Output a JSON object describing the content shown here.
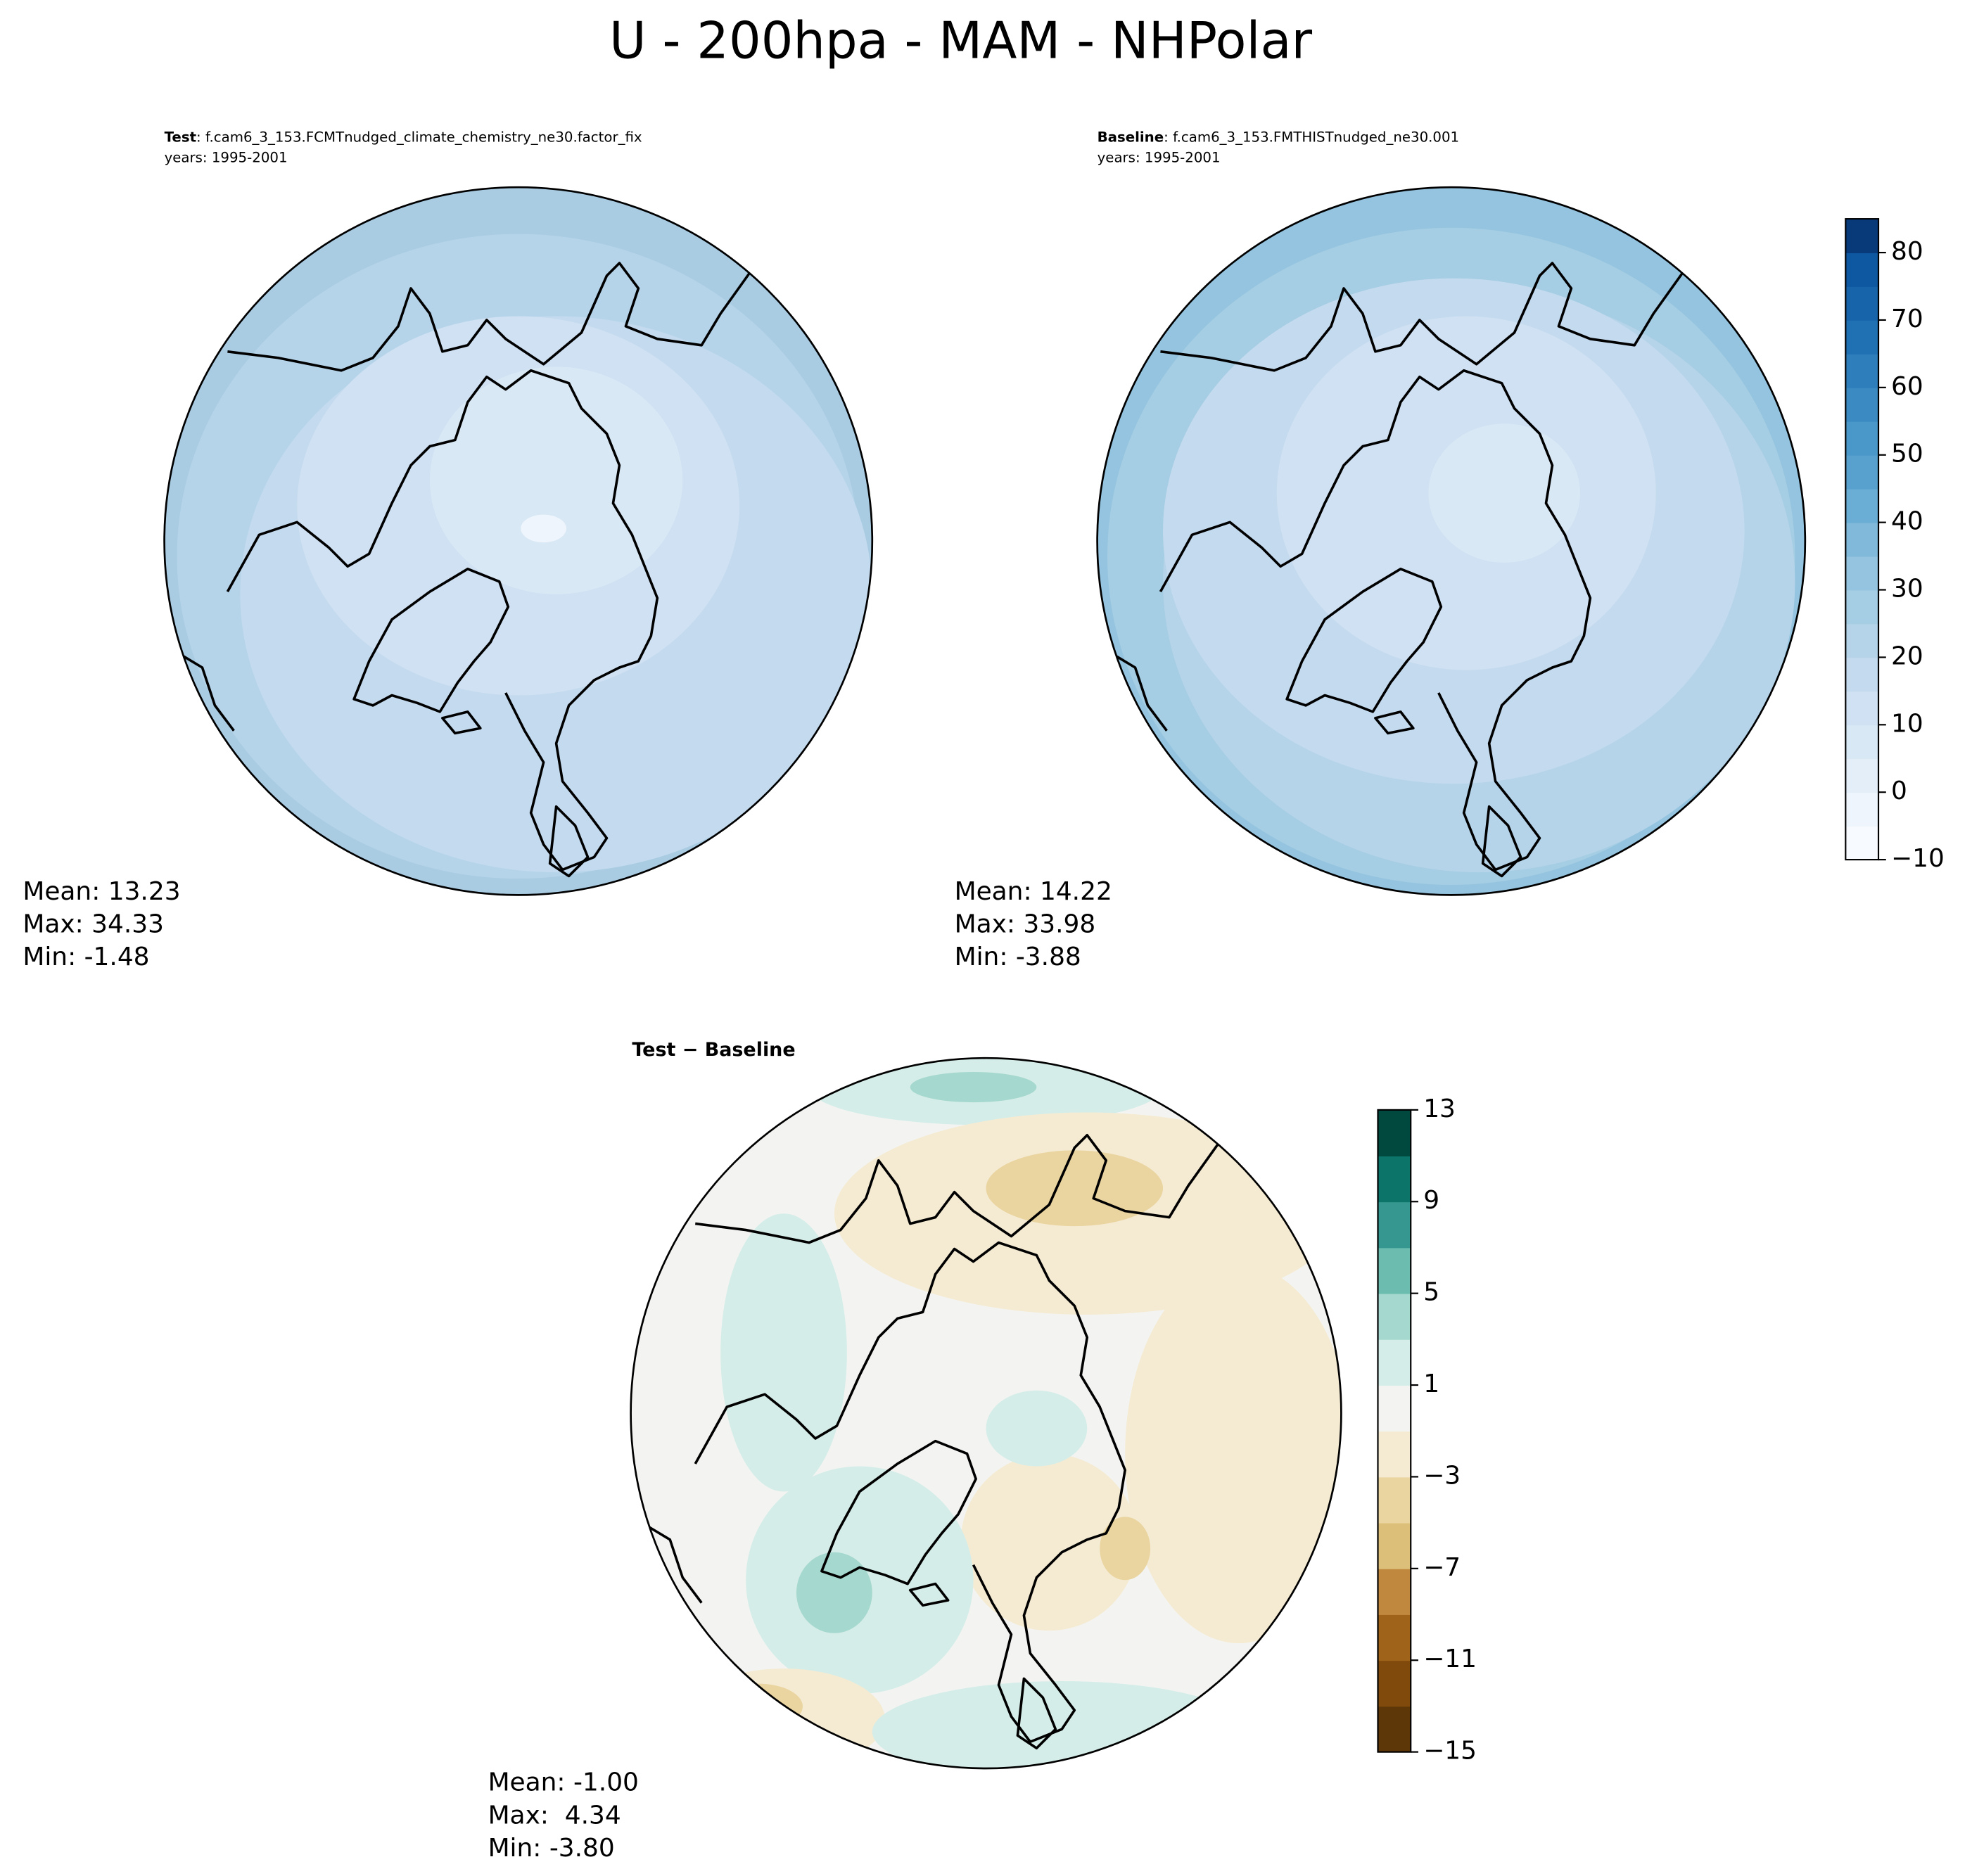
{
  "title": "U - 200hpa - MAM - NHPolar",
  "panels": [
    {
      "label_bold": "Test",
      "label": ": f.cam6_3_153.FCMTnudged_climate_chemistry_ne30.factor_fix",
      "years": "years: 1995-2001",
      "stats": [
        "Mean: 13.23",
        "Max: 34.33",
        "Min: -1.48"
      ]
    },
    {
      "label_bold": "Baseline",
      "label": ": f.cam6_3_153.FMTHISTnudged_ne30.001",
      "years": "years: 1995-2001",
      "stats": [
        "Mean: 14.22",
        "Max: 33.98",
        "Min: -3.88"
      ]
    },
    {
      "label_bold": "Test − Baseline",
      "stats": [
        "Mean: -1.00",
        "Max:  4.34",
        "Min: -3.80"
      ]
    }
  ],
  "colorbars": [
    {
      "lim": [
        -10,
        85
      ],
      "ticks": [
        {
          "value": -10,
          "label": "−10"
        },
        0,
        10,
        20,
        30,
        40,
        50,
        60,
        70,
        80
      ],
      "colors": [
        "#f7fbff",
        "#eef5fc",
        "#e3eef9",
        "#d9e8f5",
        "#cfe1f2",
        "#c4daee",
        "#b5d4e9",
        "#a5cde3",
        "#94c4df",
        "#80b9da",
        "#6aaed6",
        "#58a1cf",
        "#4a98c9",
        "#3b8bc2",
        "#2e7ebc",
        "#2070b4",
        "#1764ab",
        "#0e58a2",
        "#083a7a"
      ]
    },
    {
      "lim": [
        -15,
        13
      ],
      "ticks": [
        {
          "value": -15,
          "label": "−15"
        },
        {
          "value": -11,
          "label": "−11"
        },
        {
          "value": -7,
          "label": "−7"
        },
        {
          "value": -3,
          "label": "−3"
        },
        1,
        5,
        9,
        13
      ],
      "colors": [
        "#5e3708",
        "#7f4a0b",
        "#a0631a",
        "#c0873e",
        "#dcc07a",
        "#ead5a0",
        "#f5ebd3",
        "#f3f4f2",
        "#d5ede8",
        "#a5d8ce",
        "#6cbdb0",
        "#35978f",
        "#0d7469",
        "#01493f"
      ]
    }
  ]
}
